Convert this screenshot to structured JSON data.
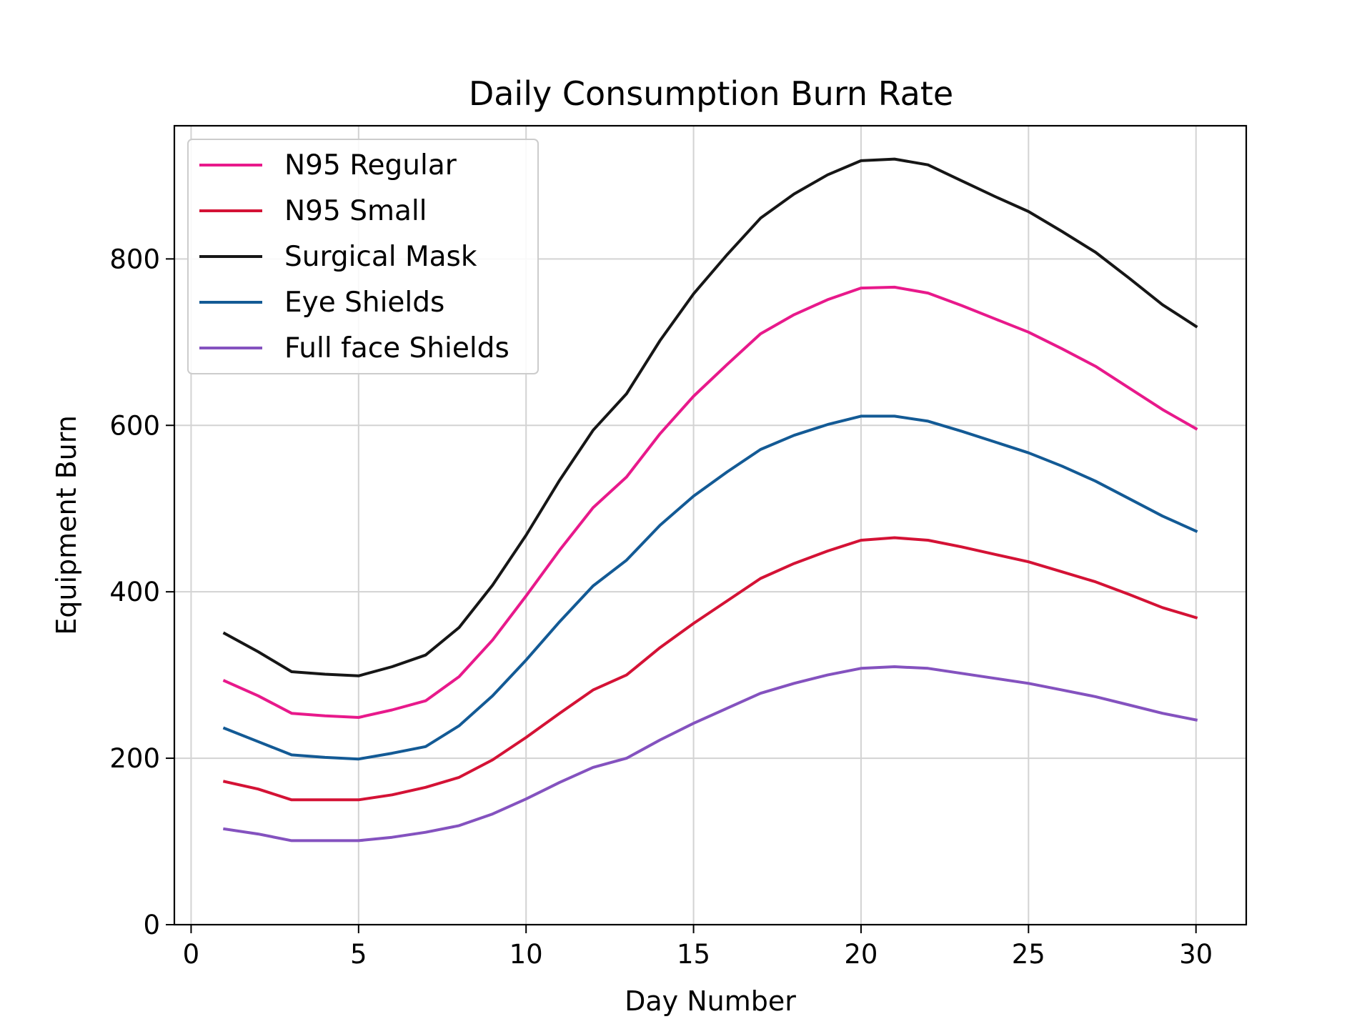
{
  "chart_data": {
    "type": "line",
    "title": "Daily Consumption Burn Rate",
    "xlabel": "Day Number",
    "ylabel": "Equipment Burn",
    "xlim": [
      -0.5,
      31.5
    ],
    "ylim": [
      0,
      960
    ],
    "xticks": [
      0,
      5,
      10,
      15,
      20,
      25,
      30
    ],
    "yticks": [
      0,
      200,
      400,
      600,
      800
    ],
    "grid": true,
    "legend_position": "upper-left",
    "x": [
      1,
      2,
      3,
      4,
      5,
      6,
      7,
      8,
      9,
      10,
      11,
      12,
      13,
      14,
      15,
      16,
      17,
      18,
      19,
      20,
      21,
      22,
      23,
      24,
      25,
      26,
      27,
      28,
      29,
      30
    ],
    "series": [
      {
        "name": "N95 Regular",
        "color": "#e8198b",
        "values": [
          293,
          275,
          254,
          251,
          249,
          258,
          269,
          298,
          342,
          395,
          450,
          501,
          538,
          590,
          635,
          673,
          710,
          733,
          751,
          765,
          766,
          759,
          744,
          728,
          712,
          692,
          671,
          645,
          619,
          596
        ]
      },
      {
        "name": "N95 Small",
        "color": "#d41235",
        "values": [
          172,
          163,
          150,
          150,
          150,
          156,
          165,
          177,
          198,
          225,
          254,
          282,
          300,
          333,
          362,
          389,
          416,
          434,
          449,
          462,
          465,
          462,
          454,
          445,
          436,
          424,
          412,
          397,
          381,
          369
        ]
      },
      {
        "name": "Surgical Mask",
        "color": "#161616",
        "values": [
          350,
          328,
          304,
          301,
          299,
          310,
          324,
          357,
          408,
          468,
          534,
          594,
          638,
          702,
          758,
          805,
          849,
          878,
          901,
          918,
          920,
          913,
          894,
          875,
          857,
          833,
          808,
          777,
          745,
          719
        ]
      },
      {
        "name": "Eye Shields",
        "color": "#135a95",
        "values": [
          236,
          220,
          204,
          201,
          199,
          206,
          214,
          239,
          275,
          318,
          364,
          407,
          438,
          480,
          515,
          544,
          571,
          588,
          601,
          611,
          611,
          605,
          593,
          580,
          567,
          551,
          533,
          512,
          491,
          473
        ]
      },
      {
        "name": "Full face Shields",
        "color": "#8452bf",
        "values": [
          115,
          109,
          101,
          101,
          101,
          105,
          111,
          119,
          133,
          151,
          171,
          189,
          200,
          222,
          242,
          260,
          278,
          290,
          300,
          308,
          310,
          308,
          302,
          296,
          290,
          282,
          274,
          264,
          254,
          246
        ]
      }
    ]
  }
}
